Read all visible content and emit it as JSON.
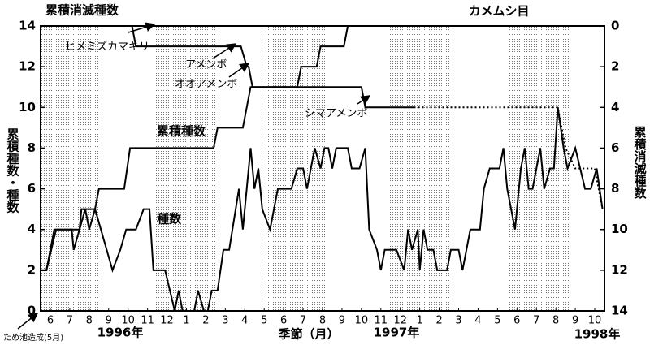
{
  "chart_data": {
    "type": "line",
    "title": "累積消滅種数",
    "subtitle": "カメムシ目",
    "x_label": "季節（月）",
    "y_label": "累積種数・種数",
    "y2_label": "累積消滅種数",
    "years": [
      "1996年",
      "1997年",
      "1998年"
    ],
    "note": "ため池造成(5月)",
    "annotations": [
      "ヒメミズカマキリ",
      "アメンボ",
      "オオアメンボ",
      "シマアメンボ"
    ],
    "xlim": [
      -0.5,
      28.5
    ],
    "xticks": [
      {
        "value": 0,
        "label": "6"
      },
      {
        "value": 1,
        "label": "7"
      },
      {
        "value": 2,
        "label": "8"
      },
      {
        "value": 3,
        "label": "9"
      },
      {
        "value": 4,
        "label": "10"
      },
      {
        "value": 5,
        "label": "11"
      },
      {
        "value": 6,
        "label": "12"
      },
      {
        "value": 7,
        "label": "1"
      },
      {
        "value": 8,
        "label": "2"
      },
      {
        "value": 9,
        "label": "3"
      },
      {
        "value": 10,
        "label": "4"
      },
      {
        "value": 11,
        "label": "5"
      },
      {
        "value": 12,
        "label": "6"
      },
      {
        "value": 13,
        "label": "7"
      },
      {
        "value": 14,
        "label": "8"
      },
      {
        "value": 15,
        "label": "9"
      },
      {
        "value": 16,
        "label": "10"
      },
      {
        "value": 17,
        "label": "11"
      },
      {
        "value": 18,
        "label": "12"
      },
      {
        "value": 19,
        "label": "1"
      },
      {
        "value": 20,
        "label": "2"
      },
      {
        "value": 21,
        "label": "3"
      },
      {
        "value": 22,
        "label": "4"
      },
      {
        "value": 23,
        "label": "5"
      },
      {
        "value": 24,
        "label": "6"
      },
      {
        "value": 25,
        "label": "7"
      },
      {
        "value": 26,
        "label": "8"
      },
      {
        "value": 27,
        "label": "9"
      },
      {
        "value": 28,
        "label": "10"
      }
    ],
    "ylim": [
      0,
      14
    ],
    "yticks": [
      0,
      2,
      4,
      6,
      8,
      10,
      12,
      14
    ],
    "y2lim": [
      14,
      0
    ],
    "y2ticks": [
      0,
      2,
      4,
      6,
      8,
      10,
      12,
      14
    ],
    "series": [
      {
        "name": "種数",
        "color": "#000000",
        "line_style": "solid",
        "x": [
          -0.5,
          -0.2,
          0.3,
          1.1,
          1.2,
          1.5,
          1.8,
          2.0,
          2.3,
          2.6,
          3.2,
          3.6,
          3.9,
          4.4,
          4.8,
          5.1,
          5.3,
          5.9,
          6.4,
          6.6,
          6.8,
          7.4,
          7.6,
          7.9,
          8.1,
          8.3,
          8.6,
          8.9,
          9.2,
          9.7,
          9.9,
          10.3,
          10.5,
          10.7,
          10.9,
          11.3,
          11.7,
          12.4,
          12.7,
          13.0,
          13.2,
          13.6,
          13.9,
          14.1,
          14.3,
          14.5,
          14.7,
          15.3,
          15.5,
          15.9,
          16.2,
          16.4,
          16.8,
          17.0,
          17.2,
          17.8,
          18.2,
          18.4,
          18.6,
          18.9,
          19.0,
          19.2,
          19.4,
          19.7,
          19.9,
          20.4,
          20.6,
          21.0,
          21.2,
          21.6,
          22.1,
          22.3,
          22.6,
          23.1,
          23.3,
          23.5,
          23.9,
          24.2,
          24.4,
          24.6,
          24.8,
          25.2,
          25.4,
          25.7,
          25.9,
          26.1,
          26.4,
          26.6,
          27.0,
          27.5,
          27.8,
          28.1,
          28.4
        ],
        "values": [
          2,
          2,
          4,
          4,
          3,
          4,
          5,
          4,
          5,
          4,
          2,
          3,
          4,
          4,
          5,
          5,
          2,
          2,
          0,
          1,
          0,
          0,
          1,
          0,
          0,
          1,
          1,
          3,
          3,
          6,
          4,
          8,
          6,
          7,
          5,
          4,
          6,
          6,
          7,
          7,
          6,
          8,
          7,
          8,
          8,
          7,
          8,
          8,
          7,
          7,
          8,
          4,
          3,
          2,
          3,
          3,
          2,
          4,
          3,
          4,
          2,
          4,
          3,
          3,
          2,
          2,
          3,
          3,
          2,
          4,
          4,
          6,
          7,
          7,
          8,
          6,
          4,
          7,
          8,
          6,
          6,
          8,
          6,
          7,
          7,
          10,
          8,
          7,
          8,
          6,
          6,
          7,
          5
        ]
      },
      {
        "name": "累積種数",
        "color": "#000000",
        "line_style": "solid",
        "x": [
          -0.5,
          -0.2,
          0.2,
          1.5,
          1.6,
          2.3,
          2.5,
          3.8,
          4.1,
          8.4,
          8.6,
          9.9,
          10.3,
          12.7,
          12.9,
          13.7,
          13.9,
          15.1,
          15.3,
          28.5
        ],
        "values": [
          2,
          2,
          4,
          4,
          5,
          5,
          6,
          6,
          8,
          8,
          9,
          9,
          11,
          11,
          12,
          12,
          13,
          13,
          14,
          14
        ]
      },
      {
        "color": "#000000",
        "line_style": "solid",
        "axis": "y2",
        "x": [
          -0.5,
          4.2,
          4.4,
          9.8,
          10.1,
          10.2,
          10.4,
          16.0,
          16.2,
          18.7
        ],
        "values": [
          0,
          0,
          1,
          1,
          2,
          2,
          3,
          3,
          4,
          4
        ]
      },
      {
        "color": "#000000",
        "line_style": "dotted",
        "axis": "y2",
        "x": [
          18.7,
          26.1,
          26.5,
          27.0,
          28.0,
          28.4
        ],
        "values": [
          4,
          4,
          6,
          7,
          7,
          9
        ]
      }
    ]
  }
}
